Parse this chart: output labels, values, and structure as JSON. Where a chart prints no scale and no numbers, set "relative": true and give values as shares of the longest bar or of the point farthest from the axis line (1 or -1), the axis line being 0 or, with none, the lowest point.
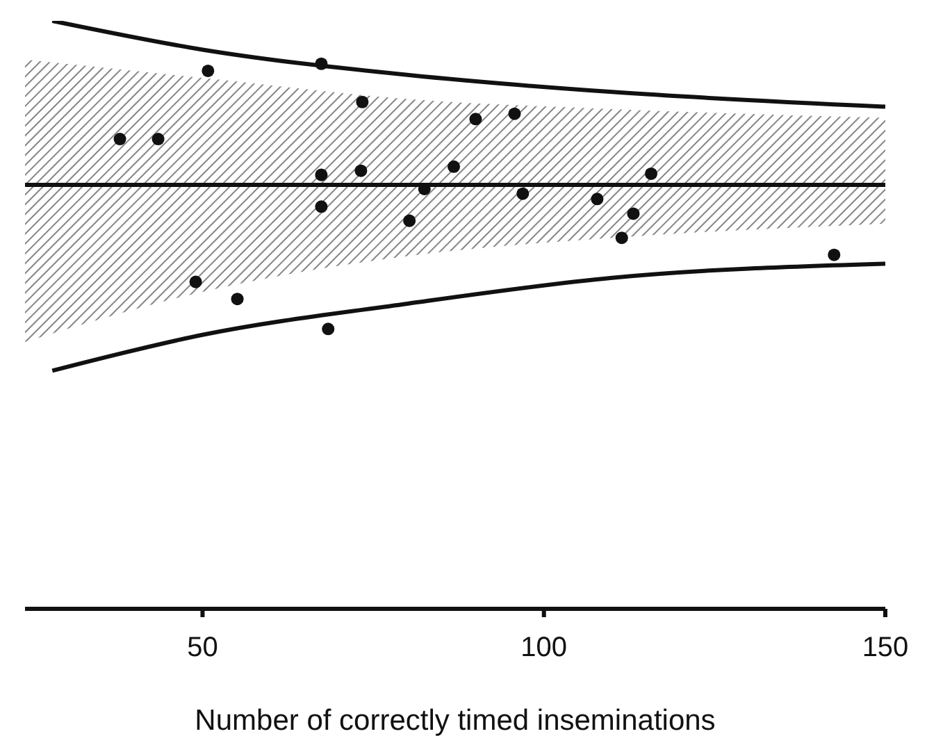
{
  "chart_data": {
    "type": "scatter",
    "relative": true,
    "xlabel": "Number of correctly timed inseminations",
    "xlim": [
      24,
      150
    ],
    "xticks": [
      50,
      100,
      150
    ],
    "grid": false,
    "legend": false,
    "series": [
      {
        "type": "line",
        "color": "#111111",
        "x": [
          24,
          50,
          80,
          110,
          150
        ],
        "values": [
          0.721,
          0.721,
          0.721,
          0.721,
          0.721
        ],
        "lower": [
          0.454,
          0.539,
          0.6,
          0.631,
          0.655
        ],
        "upper": [
          0.934,
          0.903,
          0.867,
          0.85,
          0.835
        ]
      },
      {
        "type": "line",
        "color": "#111111",
        "x": [
          28,
          50,
          80,
          110,
          150
        ],
        "values": [
          1.0,
          0.951,
          0.908,
          0.879,
          0.854
        ]
      },
      {
        "type": "line",
        "color": "#111111",
        "x": [
          28,
          50,
          80,
          110,
          150
        ],
        "values": [
          0.405,
          0.466,
          0.519,
          0.563,
          0.587
        ]
      },
      {
        "marker": "circle",
        "color": "#111111",
        "x": [
          37.9,
          43.5,
          50.8,
          49.0,
          55.1,
          67.4,
          67.4,
          67.4,
          68.4,
          73.4,
          73.2,
          80.3,
          82.5,
          86.8,
          90.0,
          95.7,
          96.9,
          107.8,
          111.4,
          113.1,
          115.7,
          142.5
        ],
        "values": [
          0.799,
          0.799,
          0.915,
          0.556,
          0.527,
          0.927,
          0.738,
          0.684,
          0.476,
          0.862,
          0.745,
          0.66,
          0.714,
          0.752,
          0.833,
          0.842,
          0.706,
          0.697,
          0.631,
          0.672,
          0.74,
          0.602
        ]
      }
    ]
  }
}
